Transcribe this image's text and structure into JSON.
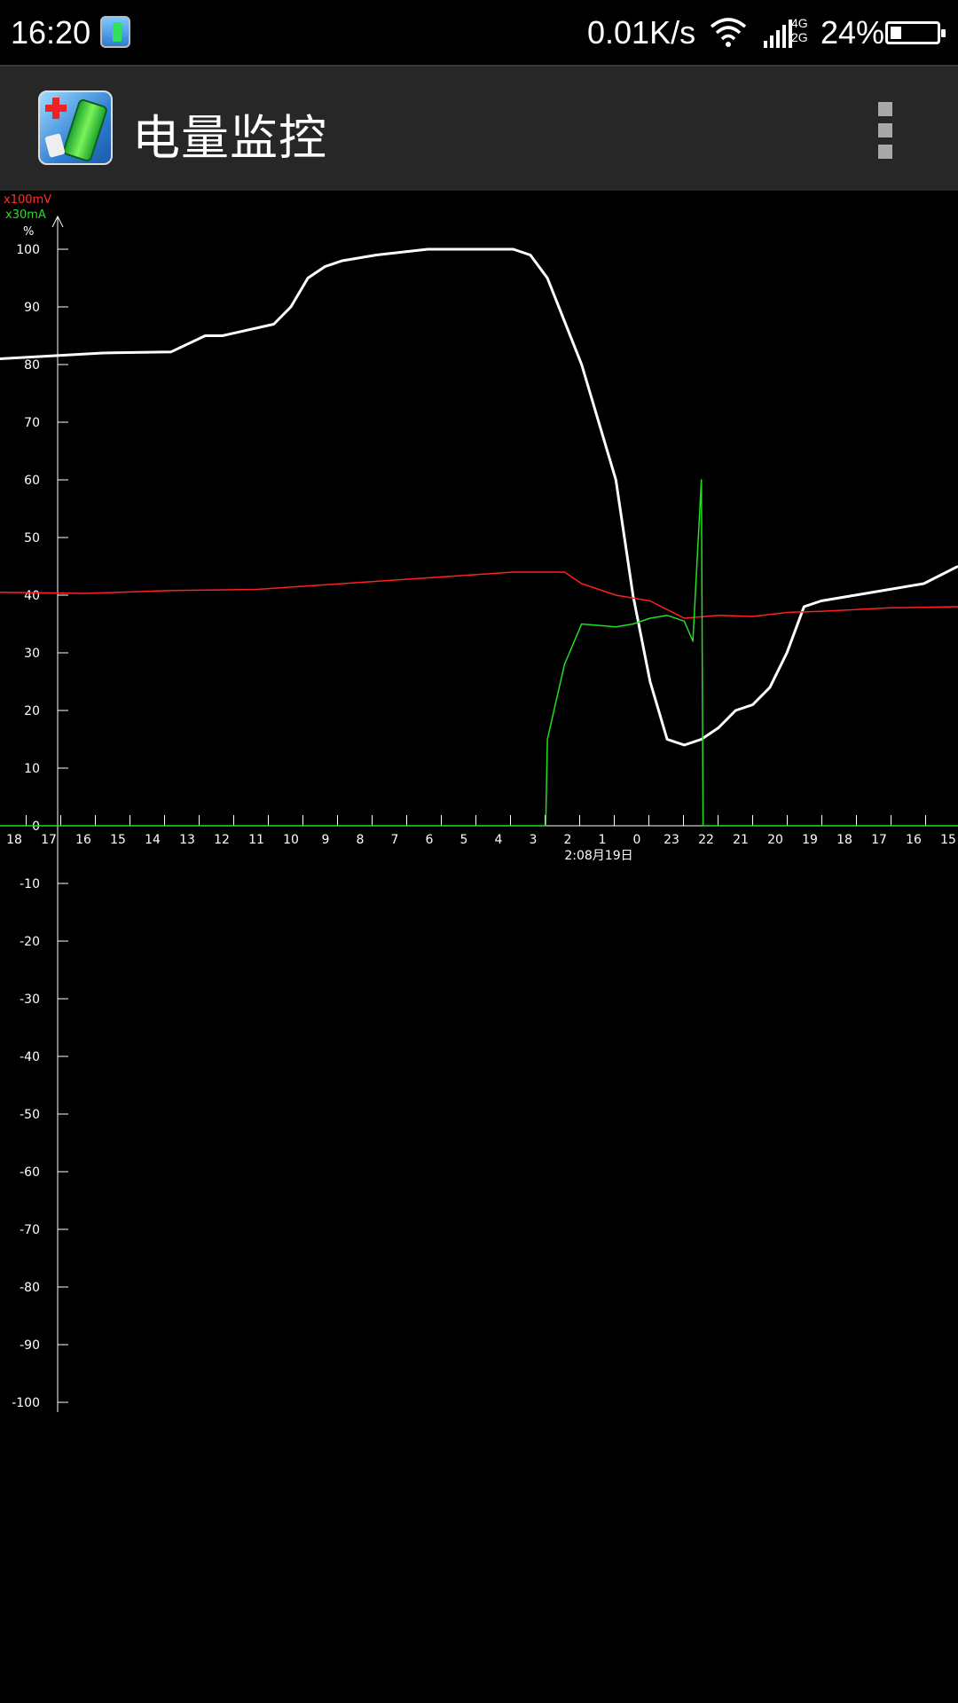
{
  "status_bar": {
    "time": "16:20",
    "net_speed": "0.01K/s",
    "network_4g": "4G",
    "network_2g": "2G",
    "battery_percent": "24%",
    "battery_level": 0.24
  },
  "action_bar": {
    "title": "电量监控",
    "overflow_icon": "more-vert-icon"
  },
  "chart_data": {
    "type": "line",
    "units": {
      "voltage": "x100mV",
      "current": "x30mA",
      "percent": "%"
    },
    "y_ticks": [
      100,
      90,
      80,
      70,
      60,
      50,
      40,
      30,
      20,
      10,
      0,
      -10,
      -20,
      -30,
      -40,
      -50,
      -60,
      -70,
      -80,
      -90,
      -100
    ],
    "ylim": [
      -100,
      100
    ],
    "x_tick_labels": [
      "18",
      "17",
      "16",
      "15",
      "14",
      "13",
      "12",
      "11",
      "10",
      "9",
      "8",
      "7",
      "6",
      "5",
      "4",
      "3",
      "2",
      "1",
      "0",
      "23",
      "22",
      "21",
      "20",
      "19",
      "18",
      "17",
      "16",
      "15"
    ],
    "x_annotation": "2:08月19日",
    "grid": false,
    "series": [
      {
        "color": "#ffffff",
        "points": [
          [
            0,
            81
          ],
          [
            6,
            82
          ],
          [
            10,
            82.2
          ],
          [
            12,
            85
          ],
          [
            13,
            85
          ],
          [
            16,
            87
          ],
          [
            17,
            90
          ],
          [
            18,
            95
          ],
          [
            19,
            97
          ],
          [
            20,
            98
          ],
          [
            22,
            99
          ],
          [
            25,
            100
          ],
          [
            30,
            100
          ],
          [
            31,
            99
          ],
          [
            32,
            95
          ],
          [
            34,
            80
          ],
          [
            36,
            60
          ],
          [
            37,
            40
          ],
          [
            38,
            25
          ],
          [
            39,
            15
          ],
          [
            40,
            14
          ],
          [
            41,
            15
          ],
          [
            42,
            17
          ],
          [
            43,
            20
          ],
          [
            44,
            21
          ],
          [
            45,
            24
          ],
          [
            46,
            30
          ],
          [
            47,
            38
          ],
          [
            48,
            39
          ],
          [
            50,
            40
          ],
          [
            52,
            41
          ],
          [
            54,
            42
          ],
          [
            56,
            45
          ]
        ]
      },
      {
        "color": "#ff2020",
        "points": [
          [
            0,
            40.5
          ],
          [
            5,
            40.3
          ],
          [
            10,
            40.8
          ],
          [
            15,
            41
          ],
          [
            20,
            42
          ],
          [
            25,
            43
          ],
          [
            30,
            44
          ],
          [
            33,
            44
          ],
          [
            34,
            42
          ],
          [
            36,
            40
          ],
          [
            38,
            39
          ],
          [
            40,
            36
          ],
          [
            42,
            36.5
          ],
          [
            44,
            36.3
          ],
          [
            46,
            37
          ],
          [
            48,
            37.2
          ],
          [
            50,
            37.5
          ],
          [
            52,
            37.8
          ],
          [
            56,
            38
          ]
        ]
      },
      {
        "color": "#20e020",
        "points": [
          [
            0,
            0
          ],
          [
            31.9,
            0
          ],
          [
            32,
            15
          ],
          [
            33,
            28
          ],
          [
            34,
            35
          ],
          [
            36,
            34.5
          ],
          [
            37,
            35
          ],
          [
            38,
            36
          ],
          [
            39,
            36.5
          ],
          [
            40,
            35.5
          ],
          [
            40.5,
            32
          ],
          [
            41,
            60
          ],
          [
            41.1,
            0
          ],
          [
            56,
            0
          ]
        ]
      }
    ]
  }
}
